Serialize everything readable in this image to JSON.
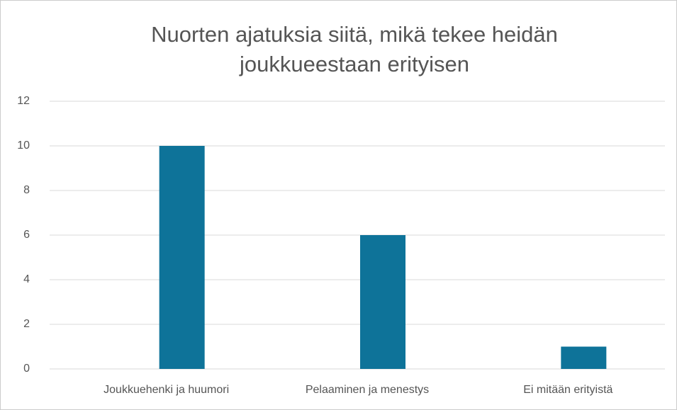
{
  "chart_data": {
    "type": "bar",
    "title": "Nuorten ajatuksia siitä, mikä tekee heidän joukkueestaan erityisen",
    "categories": [
      "Joukkuehenki ja huumori",
      "Pelaaminen ja menestys",
      "Ei mitään erityistä"
    ],
    "values": [
      10,
      6,
      1
    ],
    "color": "#0e7399",
    "ylim": [
      0,
      12
    ],
    "yticks": [
      0,
      2,
      4,
      6,
      8,
      10,
      12
    ],
    "grid": true
  }
}
